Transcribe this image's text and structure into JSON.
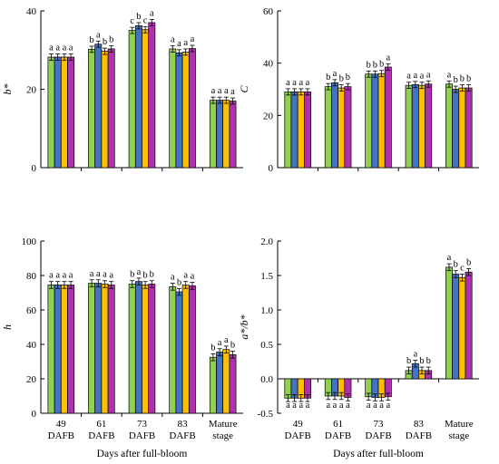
{
  "series_colors": [
    "#92d050",
    "#4472c4",
    "#ffc000",
    "#b030b0"
  ],
  "chart_data": [
    {
      "id": "b-star",
      "type": "bar",
      "ylabel": "b*",
      "xlabel": "",
      "ylim": [
        0,
        40
      ],
      "yticks": [
        0,
        20,
        40
      ],
      "categories": [
        "",
        "",
        "",
        "",
        ""
      ],
      "series": [
        {
          "values": [
            28.2,
            30.2,
            35.0,
            30.3,
            17.2
          ]
        },
        {
          "values": [
            28.2,
            31.5,
            36.2,
            29.3,
            17.2
          ]
        },
        {
          "values": [
            28.2,
            29.7,
            35.2,
            29.5,
            17.2
          ]
        },
        {
          "values": [
            28.2,
            30.3,
            37.0,
            30.4,
            17.0
          ]
        }
      ],
      "significance": [
        [
          "a",
          "a",
          "a",
          "a"
        ],
        [
          "b",
          "a",
          "b",
          "b"
        ],
        [
          "c",
          "b",
          "c",
          "a"
        ],
        [
          "a",
          "a",
          "a",
          "a"
        ],
        [
          "a",
          "a",
          "a",
          "a"
        ]
      ]
    },
    {
      "id": "chroma",
      "type": "bar",
      "ylabel": "C",
      "xlabel": "",
      "ylim": [
        0,
        60
      ],
      "yticks": [
        0,
        20,
        40,
        60
      ],
      "categories": [
        "",
        "",
        "",
        "",
        ""
      ],
      "series": [
        {
          "values": [
            29.0,
            31.0,
            35.8,
            31.5,
            32.0
          ]
        },
        {
          "values": [
            29.0,
            32.5,
            35.8,
            31.8,
            30.0
          ]
        },
        {
          "values": [
            29.0,
            30.5,
            36.0,
            31.5,
            30.5
          ]
        },
        {
          "values": [
            29.0,
            31.0,
            38.5,
            32.0,
            30.5
          ]
        }
      ],
      "significance": [
        [
          "a",
          "a",
          "a",
          "a"
        ],
        [
          "b",
          "a",
          "b",
          "b"
        ],
        [
          "b",
          "b",
          "b",
          "a"
        ],
        [
          "a",
          "a",
          "a",
          "a"
        ],
        [
          "a",
          "b",
          "b",
          "b"
        ]
      ]
    },
    {
      "id": "hue",
      "type": "bar",
      "ylabel": "h",
      "xlabel": "Days after full-bloom",
      "ylim": [
        0,
        100
      ],
      "yticks": [
        0,
        20,
        40,
        60,
        80,
        100
      ],
      "categories": [
        "49\nDAFB",
        "61\nDAFB",
        "73\nDAFB",
        "83\nDAFB",
        "Mature\nstage"
      ],
      "series": [
        {
          "values": [
            74.5,
            75.5,
            75.0,
            73.5,
            32.5
          ]
        },
        {
          "values": [
            74.5,
            75.5,
            76.5,
            70.5,
            35.5
          ]
        },
        {
          "values": [
            74.5,
            75.0,
            74.5,
            74.5,
            37.0
          ]
        },
        {
          "values": [
            74.5,
            74.5,
            75.0,
            74.0,
            34.0
          ]
        }
      ],
      "significance": [
        [
          "a",
          "a",
          "a",
          "a"
        ],
        [
          "a",
          "a",
          "a",
          "a"
        ],
        [
          "b",
          "a",
          "b",
          "b"
        ],
        [
          "a",
          "b",
          "a",
          "a"
        ],
        [
          "b",
          "a",
          "a",
          "b"
        ]
      ]
    },
    {
      "id": "a-over-b",
      "type": "bar",
      "ylabel": "a*/b*",
      "xlabel": "Days after full-bloom",
      "ylim": [
        -0.5,
        2.0
      ],
      "yticks": [
        -0.5,
        0.0,
        0.5,
        1.0,
        1.5,
        2.0
      ],
      "tick_format": "fixed1",
      "categories": [
        "49\nDAFB",
        "61\nDAFB",
        "73\nDAFB",
        "83\nDAFB",
        "Mature\nstage"
      ],
      "series": [
        {
          "values": [
            -0.28,
            -0.25,
            -0.26,
            0.12,
            1.62
          ]
        },
        {
          "values": [
            -0.28,
            -0.25,
            -0.27,
            0.22,
            1.52
          ]
        },
        {
          "values": [
            -0.28,
            -0.25,
            -0.27,
            0.12,
            1.47
          ]
        },
        {
          "values": [
            -0.28,
            -0.27,
            -0.26,
            0.12,
            1.55
          ]
        }
      ],
      "significance": [
        [
          "a",
          "a",
          "a",
          "a"
        ],
        [
          "a",
          "a",
          "a",
          "a"
        ],
        [
          "a",
          "a",
          "a",
          "a"
        ],
        [
          "b",
          "a",
          "b",
          "b"
        ],
        [
          "a",
          "b",
          "c",
          "b"
        ]
      ]
    }
  ]
}
